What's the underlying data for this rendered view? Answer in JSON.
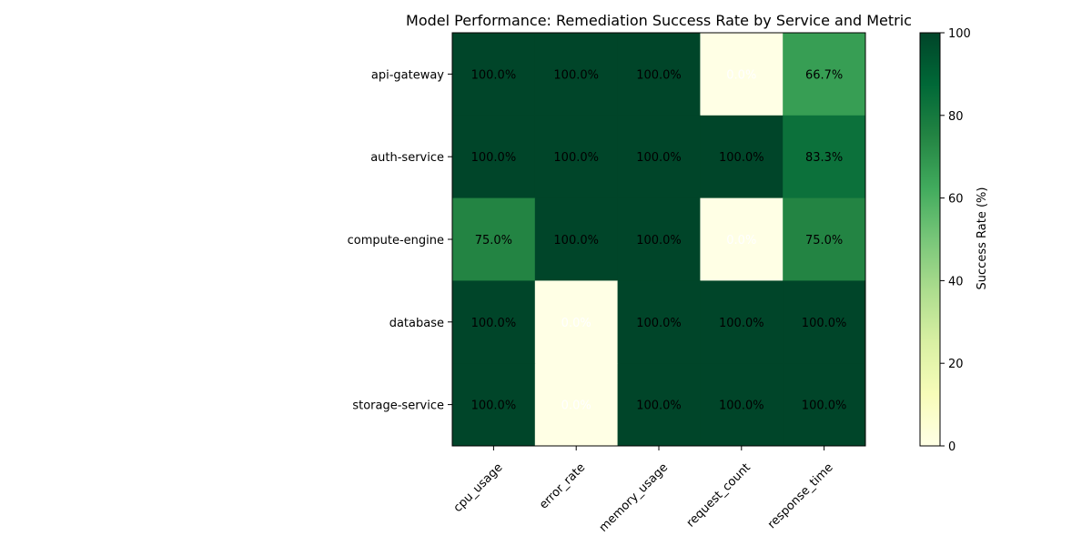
{
  "chart_data": {
    "type": "heatmap",
    "title": "Model Performance: Remediation Success Rate by Service and Metric",
    "x_categories": [
      "cpu_usage",
      "error_rate",
      "memory_usage",
      "request_count",
      "response_time"
    ],
    "y_categories": [
      "api-gateway",
      "auth-service",
      "compute-engine",
      "database",
      "storage-service"
    ],
    "values": [
      [
        100.0,
        100.0,
        100.0,
        0.0,
        66.7
      ],
      [
        100.0,
        100.0,
        100.0,
        100.0,
        83.3
      ],
      [
        75.0,
        100.0,
        100.0,
        0.0,
        75.0
      ],
      [
        100.0,
        0.0,
        100.0,
        100.0,
        100.0
      ],
      [
        100.0,
        0.0,
        100.0,
        100.0,
        100.0
      ]
    ],
    "cell_labels": [
      [
        "100.0%",
        "100.0%",
        "100.0%",
        "0.0%",
        "66.7%"
      ],
      [
        "100.0%",
        "100.0%",
        "100.0%",
        "100.0%",
        "83.3%"
      ],
      [
        "75.0%",
        "100.0%",
        "100.0%",
        "0.0%",
        "75.0%"
      ],
      [
        "100.0%",
        "0.0%",
        "100.0%",
        "100.0%",
        "100.0%"
      ],
      [
        "100.0%",
        "0.0%",
        "100.0%",
        "100.0%",
        "100.0%"
      ]
    ],
    "colormap": "YlGn",
    "colorbar": {
      "label": "Success Rate (%)",
      "range": [
        0,
        100
      ],
      "ticks": [
        "0",
        "20",
        "40",
        "60",
        "80",
        "100"
      ]
    }
  }
}
